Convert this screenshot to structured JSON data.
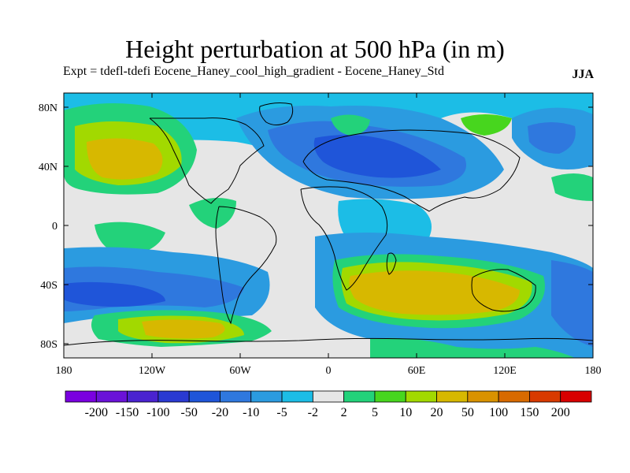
{
  "title": "Height perturbation at 500 hPa (in m)",
  "subtitle": "Expt = tdefl-tdefi  Eocene_Haney_cool_high_gradient - Eocene_Haney_Std",
  "season": "JJA",
  "map": {
    "lat_ticks": [
      "80N",
      "40N",
      "0",
      "40S",
      "80S"
    ],
    "lon_ticks": [
      "180",
      "120W",
      "60W",
      "0",
      "60E",
      "120E",
      "180"
    ]
  },
  "colorbar": {
    "labels": [
      "-200",
      "-150",
      "-100",
      "-50",
      "-20",
      "-10",
      "-5",
      "-2",
      "2",
      "5",
      "10",
      "20",
      "50",
      "100",
      "150",
      "200"
    ],
    "colors": [
      "#7a00e0",
      "#6a12d8",
      "#4a23d0",
      "#2a3ad2",
      "#1f55d9",
      "#2f78de",
      "#2b9be0",
      "#1cbde6",
      "#e6e6e6",
      "#23d27a",
      "#47d61e",
      "#a2d900",
      "#d7b800",
      "#d99200",
      "#d86a00",
      "#d83a00",
      "#d80000"
    ]
  },
  "colors": {
    "neutral": "#e6e6e6",
    "blue_dark": "#1f55d9",
    "blue_mid": "#2f78de",
    "blue_light": "#2b9be0",
    "cyan": "#1cbde6",
    "green_light": "#23d27a",
    "green": "#47d61e",
    "yellow_green": "#a2d900",
    "gold": "#d7b800"
  }
}
